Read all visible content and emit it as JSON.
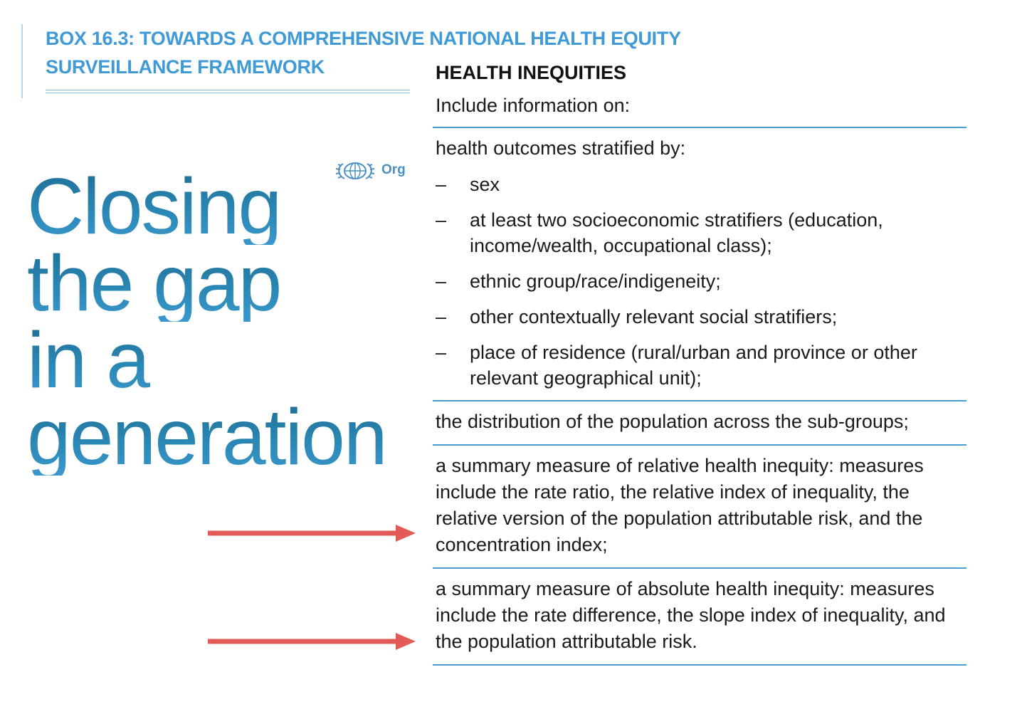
{
  "box": {
    "title": "BOX 16.3: TOWARDS A COMPREHENSIVE NATIONAL HEALTH EQUITY SURVEILLANCE FRAMEWORK"
  },
  "cover": {
    "emblem_text": "Org",
    "title_lines": [
      "Closing",
      "the gap",
      "in a",
      "generation"
    ]
  },
  "health_inequities": {
    "heading": "HEALTH INEQUITIES",
    "intro": "Include information on:",
    "outcomes_heading": "health outcomes stratified by:",
    "stratifiers": [
      "sex",
      "at least two socioeconomic stratifiers (education, income/wealth, occupational class);",
      "ethnic group/race/indigeneity;",
      "other contextually relevant social stratifiers;",
      "place of residence (rural/urban and province or other relevant geographical unit);"
    ],
    "distribution": "the distribution of the population across the sub-groups;",
    "relative_measure": "a summary measure of relative health inequity: measures include the rate ratio, the relative index of inequality, the relative version of the population attributable risk, and the concentration index;",
    "absolute_measure": "a summary measure of absolute health inequity: measures include the rate difference, the slope index of inequality, and the population attributable risk."
  },
  "colors": {
    "heading_blue": "#3f9ad5",
    "rule_blue": "#4a9ed6",
    "arrow_red": "#e35b56"
  }
}
